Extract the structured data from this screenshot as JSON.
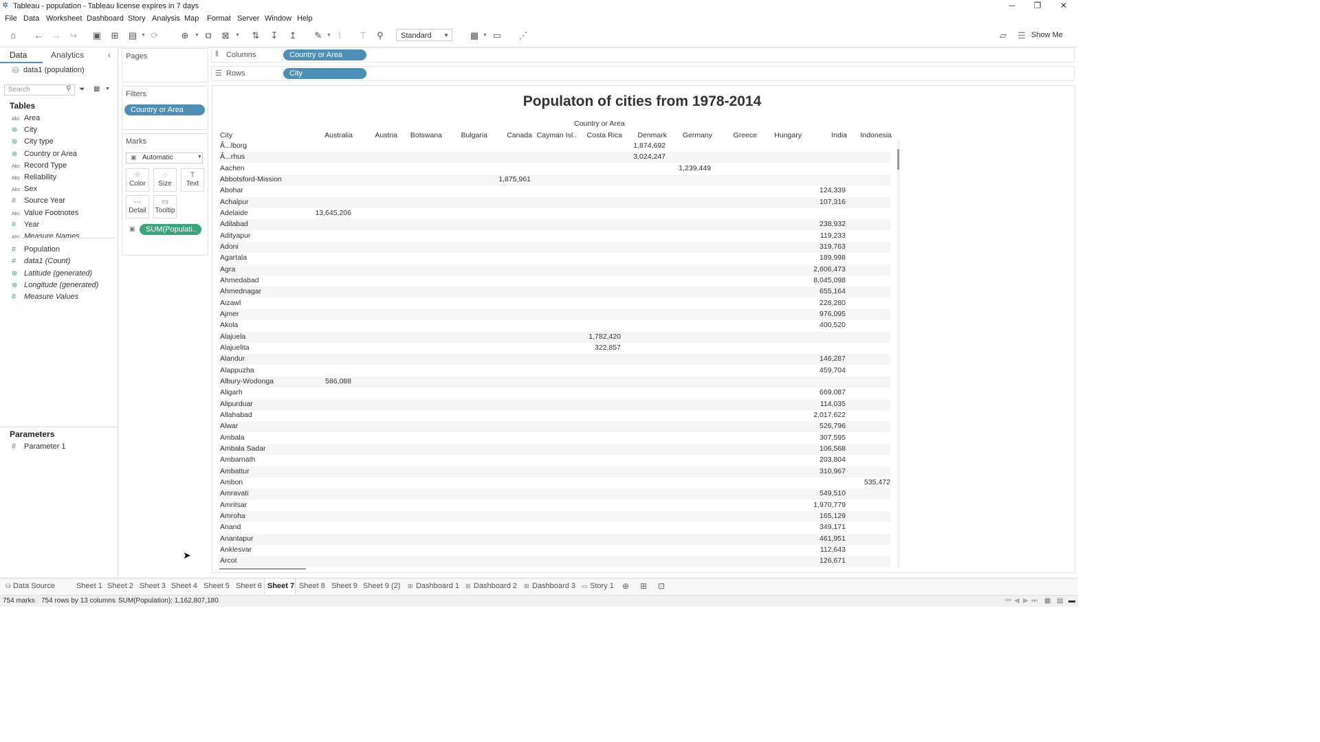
{
  "window": {
    "title": "Tableau - population - Tableau license expires in 7 days"
  },
  "menu": [
    "File",
    "Data",
    "Worksheet",
    "Dashboard",
    "Story",
    "Analysis",
    "Map",
    "Format",
    "Server",
    "Window",
    "Help"
  ],
  "toolbar": {
    "fit_value": "Standard",
    "show_me": "Show Me"
  },
  "data_pane": {
    "tab_data": "Data",
    "tab_analytics": "Analytics",
    "datasource": "data1 (population)",
    "search_placeholder": "Search",
    "tables_header": "Tables",
    "fields": [
      {
        "icon": "abc",
        "label": "Area"
      },
      {
        "icon": "globe",
        "label": "City"
      },
      {
        "icon": "globe",
        "label": "City type"
      },
      {
        "icon": "globe",
        "label": "Country or Area"
      },
      {
        "icon": "abc",
        "label": "Record Type"
      },
      {
        "icon": "abc",
        "label": "Reliability"
      },
      {
        "icon": "abc",
        "label": "Sex"
      },
      {
        "icon": "hash",
        "label": "Source Year"
      },
      {
        "icon": "abc",
        "label": "Value Footnotes"
      },
      {
        "icon": "hash",
        "label": "Year"
      },
      {
        "icon": "abc",
        "label": "Measure Names",
        "italic": true
      },
      {
        "icon": "hash",
        "label": "Population"
      },
      {
        "icon": "hash",
        "label": "data1 (Count)",
        "italic": true
      },
      {
        "icon": "globe",
        "label": "Latitude (generated)",
        "italic": true
      },
      {
        "icon": "globe",
        "label": "Longitude (generated)",
        "italic": true
      },
      {
        "icon": "hash",
        "label": "Measure Values",
        "italic": true
      }
    ],
    "parameters_header": "Parameters",
    "parameters": [
      "Parameter 1"
    ]
  },
  "shelves": {
    "pages_title": "Pages",
    "filters_title": "Filters",
    "filter_pill": "Country or Area",
    "marks_title": "Marks",
    "mark_type": "Automatic",
    "mark_buttons": [
      "Color",
      "Size",
      "Text",
      "Detail",
      "Tooltip"
    ],
    "marks_pill": "SUM(Populati..",
    "columns_label": "Columns",
    "columns_pill": "Country or Area",
    "rows_label": "Rows",
    "rows_pill": "City"
  },
  "view": {
    "title": "Populaton of cities from 1978-2014",
    "header_group": "Country or Area",
    "row_header": "City",
    "columns": [
      "Australia",
      "Austria",
      "Botswana",
      "Bulgaria",
      "Canada",
      "Cayman Isl..",
      "Costa Rica",
      "Denmark",
      "Germany",
      "Greece",
      "Hungary",
      "India",
      "Indonesia"
    ],
    "rows": [
      {
        "city": "Ã...lborg",
        "col": "Denmark",
        "value": "1,874,692"
      },
      {
        "city": "Ã...rhus",
        "col": "Denmark",
        "value": "3,024,247"
      },
      {
        "city": "Aachen",
        "col": "Germany",
        "value": "1,239,449"
      },
      {
        "city": "Abbotsford-Mission",
        "col": "Canada",
        "value": "1,875,961"
      },
      {
        "city": "Abohar",
        "col": "India",
        "value": "124,339"
      },
      {
        "city": "Achalpur",
        "col": "India",
        "value": "107,316"
      },
      {
        "city": "Adelaide",
        "col": "Australia",
        "value": "13,645,206"
      },
      {
        "city": "Adilabad",
        "col": "India",
        "value": "238,932"
      },
      {
        "city": "Adityapur",
        "col": "India",
        "value": "119,233"
      },
      {
        "city": "Adoni",
        "col": "India",
        "value": "319,763"
      },
      {
        "city": "Agartala",
        "col": "India",
        "value": "189,998"
      },
      {
        "city": "Agra",
        "col": "India",
        "value": "2,606,473"
      },
      {
        "city": "Ahmedabad",
        "col": "India",
        "value": "8,045,098"
      },
      {
        "city": "Ahmednagar",
        "col": "India",
        "value": "655,164"
      },
      {
        "city": "Aizawl",
        "col": "India",
        "value": "228,280"
      },
      {
        "city": "Ajmer",
        "col": "India",
        "value": "976,095"
      },
      {
        "city": "Akola",
        "col": "India",
        "value": "400,520"
      },
      {
        "city": "Alajuela",
        "col": "Costa Rica",
        "value": "1,782,420"
      },
      {
        "city": "Alajuelita",
        "col": "Costa Rica",
        "value": "322,857"
      },
      {
        "city": "Alandur",
        "col": "India",
        "value": "146,287"
      },
      {
        "city": "Alappuzha",
        "col": "India",
        "value": "459,704"
      },
      {
        "city": "Albury-Wodonga",
        "col": "Australia",
        "value": "586,088"
      },
      {
        "city": "Aligarh",
        "col": "India",
        "value": "669,087"
      },
      {
        "city": "Alipurduar",
        "col": "India",
        "value": "114,035"
      },
      {
        "city": "Allahabad",
        "col": "India",
        "value": "2,017,622"
      },
      {
        "city": "Alwar",
        "col": "India",
        "value": "526,796"
      },
      {
        "city": "Ambala",
        "col": "India",
        "value": "307,595"
      },
      {
        "city": "Ambala Sadar",
        "col": "India",
        "value": "106,568"
      },
      {
        "city": "Ambarnath",
        "col": "India",
        "value": "203,804"
      },
      {
        "city": "Ambattur",
        "col": "India",
        "value": "310,967"
      },
      {
        "city": "Ambon",
        "col": "Indonesia",
        "value": "535,472"
      },
      {
        "city": "Amravati",
        "col": "India",
        "value": "549,510"
      },
      {
        "city": "Amritsar",
        "col": "India",
        "value": "1,970,779"
      },
      {
        "city": "Amroha",
        "col": "India",
        "value": "165,129"
      },
      {
        "city": "Anand",
        "col": "India",
        "value": "349,171"
      },
      {
        "city": "Anantapur",
        "col": "India",
        "value": "461,951"
      },
      {
        "city": "Anklesvar",
        "col": "India",
        "value": "112,643"
      },
      {
        "city": "Arcot",
        "col": "India",
        "value": "126,671"
      }
    ]
  },
  "sheet_tabs": [
    "Data Source",
    "Sheet 1",
    "Sheet 2",
    "Sheet 3",
    "Sheet 4",
    "Sheet 5",
    "Sheet 6",
    "Sheet 7",
    "Sheet 8",
    "Sheet 9",
    "Sheet 9 (2)",
    "Dashboard 1",
    "Dashboard 2",
    "Dashboard 3",
    "Story 1"
  ],
  "active_tab": "Sheet 7",
  "status": {
    "marks": "754 marks",
    "rows": "754 rows by 13 columns",
    "sum": "SUM(Population): 1,162,807,180"
  },
  "colors": {
    "dimension_pill": "#4e8fb5",
    "measure_pill": "#3aa57a"
  }
}
